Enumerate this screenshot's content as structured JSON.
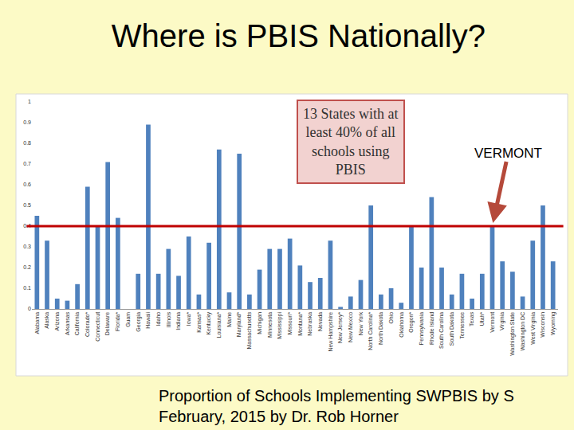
{
  "chart_data": {
    "type": "bar",
    "title": "Where is PBIS Nationally?",
    "caption": [
      "Proportion of Schools Implementing SWPBIS by S",
      "February, 2015 by Dr. Rob Horner"
    ],
    "categories": [
      "Alabama",
      "Alaska",
      "Arizona",
      "Arkansas",
      "California",
      "Colorado*",
      "Connecticut",
      "Delaware",
      "Florida*",
      "Guam",
      "Georgia",
      "Hawaii",
      "Idaho",
      "Illinois",
      "Indiana",
      "Iowa*",
      "Kansas*",
      "Kentucky",
      "Louisiana*",
      "Maine",
      "Maryland*",
      "Massachusetts",
      "Michigan",
      "Minnesota",
      "Mississippi",
      "Missouri*",
      "Montana*",
      "Nebraska",
      "Nevada",
      "New Hampshire",
      "New Jersey*",
      "New Mexico",
      "New York",
      "North Carolina*",
      "North Dakota",
      "Ohio",
      "Oklahoma",
      "Oregon*",
      "Pennsylvania",
      "Rhode Island",
      "South Carolina",
      "South Dakota",
      "Tennessee",
      "Texas",
      "Utah*",
      "Vermont",
      "Virginia",
      "Washington State",
      "Washington DC",
      "West Virginia",
      "Wisconsin",
      "Wyoming"
    ],
    "values": [
      0.45,
      0.33,
      0.05,
      0.04,
      0.12,
      0.59,
      0.4,
      0.71,
      0.44,
      0,
      0.17,
      0.89,
      0.17,
      0.29,
      0.16,
      0.35,
      0.07,
      0.32,
      0.77,
      0.08,
      0.75,
      0.07,
      0.19,
      0.29,
      0.29,
      0.34,
      0.21,
      0.13,
      0.15,
      0.33,
      0.01,
      0.06,
      0.14,
      0.5,
      0.07,
      0.1,
      0.03,
      0.4,
      0.2,
      0.54,
      0.2,
      0.07,
      0.17,
      0.05,
      0.17,
      0.4,
      0.23,
      0.18,
      0.06,
      0.33,
      0.5,
      0.23
    ],
    "color": "#4f81bd",
    "ylim": [
      0,
      1
    ],
    "yticks": [
      0,
      0.1,
      0.2,
      0.3,
      0.4,
      0.5,
      0.6,
      0.7,
      0.8,
      0.9,
      1
    ],
    "grid": false,
    "reference_line": 0.4,
    "annotations": [
      {
        "lines": [
          "13 States with at",
          "least 40% of all",
          "schools using",
          "PBIS"
        ]
      },
      {
        "lines": [
          "VERMONT"
        ],
        "category": "Vermont"
      }
    ]
  }
}
